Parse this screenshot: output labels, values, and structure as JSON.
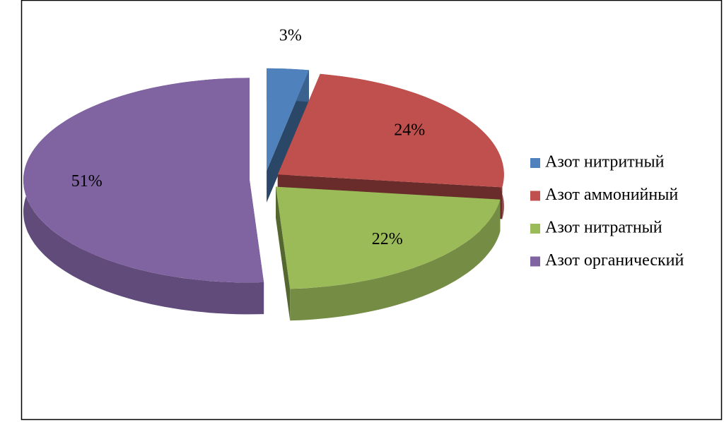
{
  "chart_data": {
    "type": "pie3d",
    "categories": [
      "Азот нитритный",
      "Азот аммонийный",
      "Азот нитратный",
      "Азот органический"
    ],
    "values": [
      3,
      24,
      22,
      51
    ],
    "value_labels": [
      "3%",
      "24%",
      "22%",
      "51%"
    ],
    "colors": [
      "#4f81bd",
      "#c0504d",
      "#9bbb59",
      "#8064a2"
    ],
    "legend": "right"
  }
}
